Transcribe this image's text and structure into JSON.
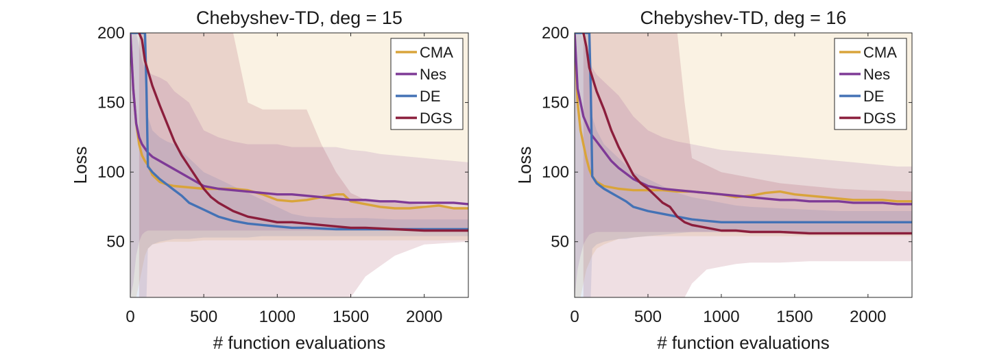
{
  "chart_data": [
    {
      "type": "line",
      "title": "Chebyshev-TD, deg = 15",
      "xlabel": "# function evaluations",
      "ylabel": "Loss",
      "xlim": [
        0,
        2300
      ],
      "ylim": [
        10,
        200
      ],
      "xticks": [
        0,
        500,
        1000,
        1500,
        2000
      ],
      "yticks": [
        50,
        100,
        150,
        200
      ],
      "legend": "top-right",
      "series": [
        {
          "name": "CMA",
          "color": "#D9A43A",
          "x": [
            0,
            20,
            40,
            60,
            80,
            100,
            120,
            150,
            200,
            250,
            300,
            400,
            500,
            600,
            700,
            800,
            900,
            1000,
            1100,
            1200,
            1300,
            1400,
            1450,
            1500,
            1600,
            1700,
            1800,
            1900,
            2000,
            2100,
            2200,
            2300
          ],
          "y": [
            200,
            160,
            135,
            120,
            112,
            108,
            105,
            98,
            93,
            91,
            90,
            89,
            88,
            88,
            88,
            87,
            84,
            80,
            79,
            80,
            82,
            84,
            84,
            79,
            77,
            75,
            74,
            74,
            75,
            76,
            74,
            74
          ],
          "lower": [
            10,
            10,
            10,
            20,
            30,
            40,
            45,
            48,
            49,
            50,
            50,
            50,
            51,
            51,
            51,
            51,
            51,
            51,
            51,
            51,
            51,
            51,
            51,
            51,
            51,
            51,
            51,
            51,
            51,
            51,
            51,
            51
          ],
          "upper": [
            200,
            200,
            200,
            200,
            200,
            200,
            200,
            200,
            200,
            200,
            200,
            200,
            200,
            200,
            200,
            200,
            200,
            200,
            200,
            200,
            200,
            200,
            200,
            200,
            200,
            200,
            200,
            200,
            200,
            200,
            200,
            200
          ]
        },
        {
          "name": "Nes",
          "color": "#7E3A96",
          "x": [
            0,
            20,
            40,
            60,
            80,
            100,
            120,
            150,
            200,
            250,
            300,
            400,
            500,
            600,
            700,
            800,
            900,
            1000,
            1100,
            1200,
            1300,
            1400,
            1500,
            1600,
            1700,
            1800,
            1900,
            2000,
            2100,
            2200,
            2300
          ],
          "y": [
            200,
            160,
            135,
            125,
            120,
            117,
            114,
            111,
            108,
            105,
            102,
            96,
            90,
            88,
            87,
            86,
            85,
            84,
            84,
            83,
            82,
            81,
            80,
            80,
            79,
            79,
            78,
            78,
            78,
            78,
            77
          ],
          "lower": [
            10,
            20,
            40,
            50,
            55,
            57,
            58,
            58,
            58,
            58,
            58,
            58,
            58,
            58,
            58,
            58,
            58,
            58,
            58,
            58,
            58,
            58,
            58,
            58,
            58,
            58,
            58,
            58,
            58,
            58,
            58
          ],
          "upper": [
            200,
            200,
            200,
            190,
            180,
            175,
            172,
            170,
            168,
            165,
            158,
            150,
            130,
            125,
            122,
            120,
            120,
            120,
            118,
            118,
            118,
            118,
            116,
            115,
            113,
            112,
            111,
            110,
            109,
            108,
            107
          ]
        },
        {
          "name": "DE",
          "color": "#4472B5",
          "x": [
            0,
            40,
            80,
            100,
            110,
            120,
            150,
            200,
            250,
            300,
            350,
            400,
            500,
            600,
            700,
            800,
            900,
            1000,
            1100,
            1200,
            1400,
            1600,
            1800,
            2000,
            2300
          ],
          "y": [
            200,
            200,
            200,
            200,
            160,
            104,
            100,
            95,
            91,
            87,
            83,
            78,
            73,
            68,
            65,
            63,
            62,
            61,
            60,
            60,
            59,
            59,
            59,
            59,
            59
          ],
          "lower": [
            10,
            10,
            10,
            10,
            10,
            45,
            48,
            50,
            51,
            52,
            52,
            52,
            53,
            53,
            53,
            53,
            54,
            54,
            54,
            54,
            54,
            54,
            54,
            54,
            54
          ],
          "upper": [
            200,
            200,
            200,
            200,
            200,
            140,
            130,
            125,
            122,
            120,
            115,
            110,
            100,
            95,
            90,
            85,
            80,
            75,
            70,
            68,
            67,
            67,
            66,
            66,
            66
          ]
        },
        {
          "name": "DGS",
          "color": "#8B1E3C",
          "x": [
            60,
            80,
            100,
            150,
            200,
            250,
            300,
            350,
            400,
            450,
            500,
            550,
            600,
            700,
            800,
            900,
            1000,
            1100,
            1200,
            1300,
            1400,
            1500,
            1600,
            1800,
            2000,
            2300
          ],
          "y": [
            200,
            195,
            180,
            162,
            148,
            135,
            122,
            112,
            104,
            96,
            88,
            82,
            78,
            72,
            68,
            66,
            64,
            64,
            63,
            62,
            61,
            60,
            60,
            59,
            58,
            58
          ],
          "lower": [
            10,
            10,
            10,
            10,
            10,
            10,
            10,
            10,
            10,
            10,
            10,
            10,
            10,
            10,
            10,
            10,
            10,
            10,
            10,
            10,
            10,
            10,
            25,
            40,
            48,
            50
          ],
          "upper": [
            200,
            200,
            200,
            200,
            200,
            200,
            200,
            200,
            200,
            200,
            200,
            200,
            200,
            200,
            150,
            145,
            145,
            145,
            145,
            120,
            100,
            85,
            80,
            78,
            76,
            74
          ]
        }
      ]
    },
    {
      "type": "line",
      "title": "Chebyshev-TD, deg = 16",
      "xlabel": "# function evaluations",
      "ylabel": "Loss",
      "xlim": [
        0,
        2300
      ],
      "ylim": [
        10,
        200
      ],
      "xticks": [
        0,
        500,
        1000,
        1500,
        2000
      ],
      "yticks": [
        50,
        100,
        150,
        200
      ],
      "legend": "top-right",
      "series": [
        {
          "name": "CMA",
          "color": "#D9A43A",
          "x": [
            0,
            20,
            40,
            60,
            80,
            100,
            120,
            150,
            200,
            250,
            300,
            400,
            500,
            600,
            700,
            800,
            900,
            1000,
            1100,
            1200,
            1300,
            1400,
            1500,
            1600,
            1700,
            1800,
            1900,
            2000,
            2100,
            2200,
            2300
          ],
          "y": [
            200,
            150,
            130,
            120,
            110,
            102,
            97,
            93,
            90,
            89,
            88,
            87,
            87,
            87,
            86,
            86,
            85,
            84,
            82,
            83,
            85,
            86,
            84,
            83,
            82,
            81,
            80,
            80,
            80,
            79,
            79
          ],
          "lower": [
            10,
            10,
            10,
            20,
            30,
            35,
            40,
            45,
            48,
            50,
            52,
            53,
            54,
            54,
            54,
            54,
            54,
            54,
            54,
            54,
            54,
            54,
            54,
            54,
            54,
            54,
            54,
            54,
            54,
            54,
            54
          ],
          "upper": [
            200,
            200,
            200,
            200,
            200,
            200,
            200,
            200,
            200,
            200,
            200,
            200,
            200,
            200,
            200,
            200,
            200,
            200,
            200,
            200,
            200,
            200,
            200,
            200,
            200,
            200,
            200,
            200,
            200,
            200,
            200
          ]
        },
        {
          "name": "Nes",
          "color": "#7E3A96",
          "x": [
            0,
            20,
            40,
            60,
            80,
            100,
            120,
            150,
            200,
            250,
            300,
            400,
            500,
            600,
            700,
            800,
            900,
            1000,
            1100,
            1200,
            1300,
            1400,
            1500,
            1600,
            1700,
            1800,
            1900,
            2000,
            2100,
            2200,
            2300
          ],
          "y": [
            200,
            160,
            150,
            140,
            135,
            130,
            126,
            122,
            115,
            108,
            103,
            95,
            90,
            88,
            87,
            86,
            85,
            84,
            83,
            82,
            81,
            80,
            80,
            79,
            79,
            79,
            78,
            78,
            78,
            77,
            77
          ],
          "lower": [
            10,
            30,
            40,
            48,
            52,
            55,
            56,
            57,
            57,
            57,
            57,
            57,
            57,
            57,
            57,
            57,
            57,
            57,
            57,
            57,
            57,
            57,
            57,
            57,
            57,
            57,
            57,
            57,
            57,
            57,
            57
          ],
          "upper": [
            200,
            200,
            200,
            195,
            185,
            180,
            175,
            170,
            165,
            160,
            155,
            140,
            130,
            125,
            122,
            120,
            118,
            116,
            115,
            114,
            113,
            112,
            111,
            110,
            109,
            108,
            107,
            106,
            105,
            104,
            104
          ]
        },
        {
          "name": "DE",
          "color": "#4472B5",
          "x": [
            0,
            40,
            80,
            100,
            110,
            120,
            150,
            200,
            250,
            300,
            350,
            400,
            500,
            600,
            700,
            800,
            900,
            1000,
            1100,
            1200,
            1400,
            1600,
            1800,
            2000,
            2300
          ],
          "y": [
            200,
            200,
            200,
            200,
            160,
            97,
            92,
            88,
            85,
            82,
            79,
            75,
            72,
            70,
            68,
            66,
            65,
            64,
            64,
            64,
            64,
            64,
            64,
            64,
            64
          ],
          "lower": [
            10,
            10,
            10,
            10,
            10,
            45,
            48,
            50,
            51,
            52,
            52,
            53,
            54,
            55,
            56,
            57,
            57,
            57,
            57,
            57,
            57,
            57,
            57,
            57,
            57
          ],
          "upper": [
            200,
            200,
            200,
            200,
            200,
            140,
            130,
            120,
            115,
            110,
            105,
            100,
            95,
            90,
            85,
            82,
            80,
            78,
            76,
            75,
            74,
            73,
            72,
            72,
            72
          ]
        },
        {
          "name": "DGS",
          "color": "#8B1E3C",
          "x": [
            60,
            80,
            100,
            150,
            200,
            250,
            300,
            350,
            400,
            450,
            500,
            550,
            600,
            650,
            700,
            750,
            800,
            900,
            1000,
            1100,
            1200,
            1400,
            1600,
            1800,
            2000,
            2300
          ],
          "y": [
            200,
            190,
            175,
            158,
            145,
            130,
            118,
            108,
            98,
            92,
            88,
            83,
            78,
            75,
            68,
            64,
            62,
            60,
            58,
            58,
            57,
            57,
            56,
            56,
            56,
            56
          ],
          "lower": [
            10,
            10,
            10,
            10,
            10,
            10,
            10,
            10,
            10,
            10,
            10,
            10,
            10,
            10,
            10,
            10,
            20,
            30,
            32,
            34,
            35,
            35,
            36,
            36,
            36,
            36
          ],
          "upper": [
            200,
            200,
            200,
            200,
            200,
            200,
            200,
            200,
            200,
            200,
            200,
            200,
            200,
            200,
            200,
            150,
            110,
            105,
            100,
            98,
            96,
            92,
            90,
            88,
            87,
            86
          ]
        }
      ]
    }
  ]
}
